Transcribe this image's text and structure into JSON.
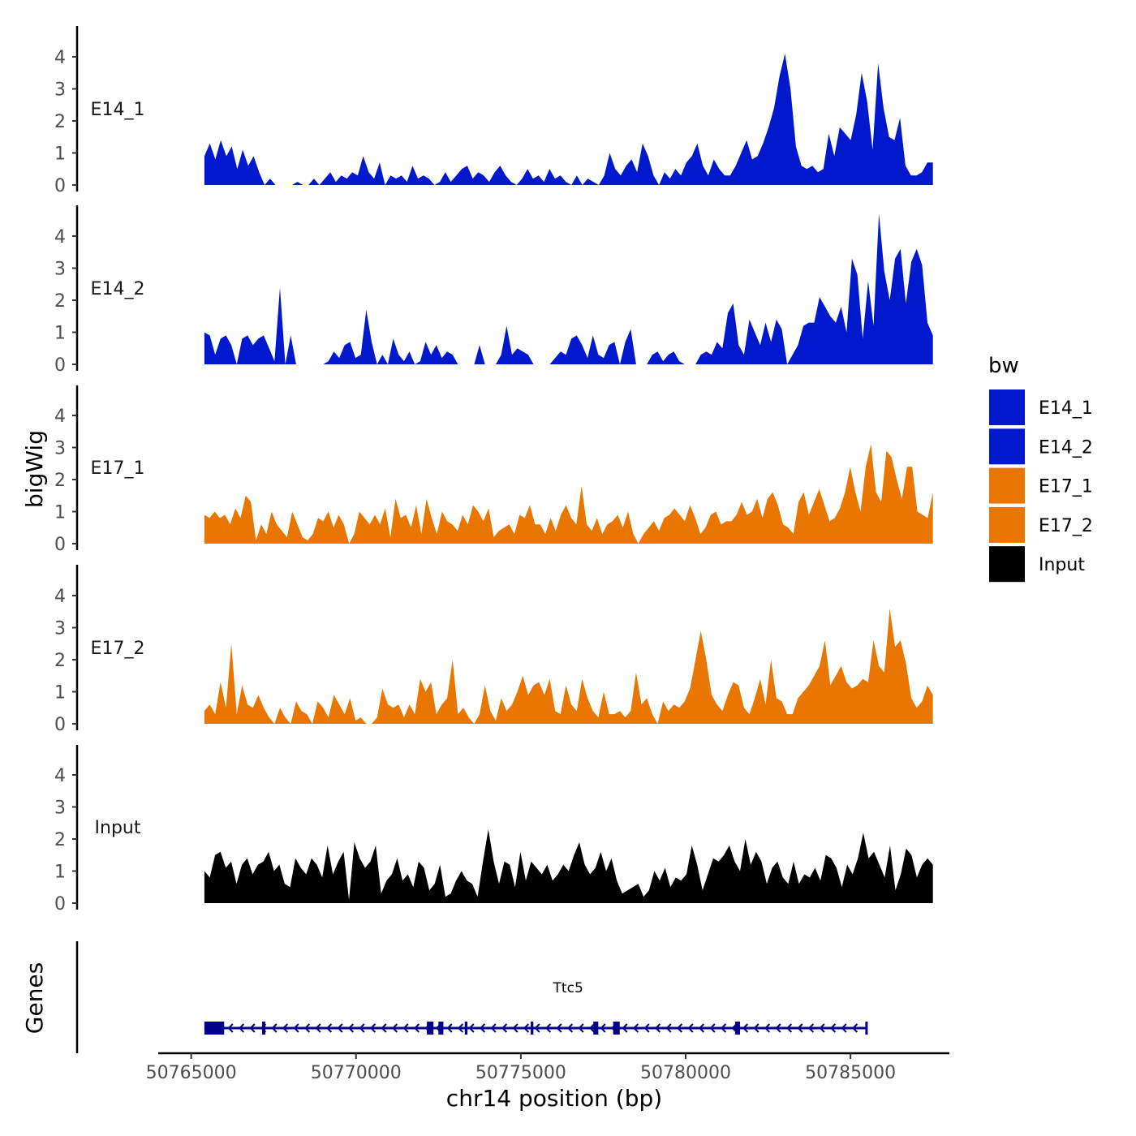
{
  "chart_data": {
    "type": "area",
    "ylabel": "bigWig",
    "xlabel": "chr14 position (bp)",
    "genes_label": "Genes",
    "xlim": [
      50764000,
      50788000
    ],
    "data_xlim": [
      50765400,
      50787500
    ],
    "ylim": [
      0,
      5
    ],
    "yticks": [
      "0",
      "1",
      "2",
      "3",
      "4"
    ],
    "xticks": [
      {
        "value": 50765000,
        "label": "50765000"
      },
      {
        "value": 50770000,
        "label": "50770000"
      },
      {
        "value": 50775000,
        "label": "50775000"
      },
      {
        "value": 50780000,
        "label": "50780000"
      },
      {
        "value": 50785000,
        "label": "50785000"
      }
    ],
    "legend": {
      "title": "bw",
      "entries": [
        {
          "label": "E14_1",
          "color": "#0019CC"
        },
        {
          "label": "E14_2",
          "color": "#0019CC"
        },
        {
          "label": "E17_1",
          "color": "#E87600"
        },
        {
          "label": "E17_2",
          "color": "#E87600"
        },
        {
          "label": "Input",
          "color": "#000000"
        }
      ]
    },
    "series": [
      {
        "name": "E14_1",
        "color": "#0019CC",
        "values": [
          0.9,
          1.3,
          0.8,
          1.4,
          0.9,
          1.2,
          0.5,
          1.1,
          0.6,
          0.9,
          0.4,
          0.0,
          0.2,
          0.0,
          0.0,
          0.0,
          0.0,
          0.1,
          0.0,
          0.0,
          0.2,
          0.0,
          0.2,
          0.4,
          0.1,
          0.3,
          0.2,
          0.4,
          0.3,
          0.9,
          0.4,
          0.2,
          0.7,
          0.0,
          0.3,
          0.2,
          0.3,
          0.1,
          0.6,
          0.2,
          0.3,
          0.2,
          0.0,
          0.1,
          0.4,
          0.1,
          0.3,
          0.5,
          0.6,
          0.2,
          0.4,
          0.3,
          0.1,
          0.4,
          0.6,
          0.3,
          0.1,
          0.0,
          0.2,
          0.5,
          0.2,
          0.3,
          0.1,
          0.5,
          0.2,
          0.3,
          0.1,
          0.0,
          0.3,
          0.0,
          0.2,
          0.1,
          0.0,
          0.3,
          1.0,
          0.5,
          0.3,
          0.6,
          0.8,
          0.4,
          1.3,
          0.9,
          0.3,
          0.0,
          0.4,
          0.2,
          0.5,
          0.3,
          0.7,
          0.9,
          1.3,
          0.6,
          0.3,
          0.8,
          0.5,
          0.3,
          0.3,
          0.6,
          1.0,
          1.4,
          0.8,
          0.9,
          1.3,
          1.8,
          2.4,
          3.4,
          4.1,
          3.0,
          1.2,
          0.6,
          0.5,
          0.6,
          0.4,
          0.5,
          1.6,
          0.9,
          1.8,
          1.6,
          1.4,
          2.2,
          3.5,
          2.6,
          1.1,
          3.8,
          2.4,
          1.5,
          1.4,
          2.1,
          0.6,
          0.3,
          0.3,
          0.4,
          0.7,
          0.7
        ]
      },
      {
        "name": "E14_2",
        "color": "#0019CC",
        "values": [
          1.0,
          0.9,
          0.3,
          0.8,
          0.9,
          0.6,
          0.0,
          0.8,
          0.9,
          0.6,
          0.8,
          0.9,
          0.5,
          0.1,
          2.4,
          0.0,
          0.9,
          0.0,
          0.0,
          0.0,
          0.0,
          0.0,
          0.0,
          0.1,
          0.4,
          0.2,
          0.6,
          0.7,
          0.2,
          0.3,
          1.7,
          0.7,
          0.0,
          0.3,
          0.0,
          0.8,
          0.3,
          0.1,
          0.4,
          0.0,
          0.1,
          0.7,
          0.3,
          0.6,
          0.2,
          0.4,
          0.3,
          0.0,
          0.0,
          0.0,
          0.0,
          0.6,
          0.0,
          0.0,
          0.0,
          0.3,
          1.2,
          0.3,
          0.5,
          0.4,
          0.3,
          0.0,
          0.0,
          0.0,
          0.0,
          0.2,
          0.4,
          0.3,
          0.8,
          0.9,
          0.6,
          0.2,
          0.9,
          0.3,
          0.2,
          0.6,
          0.7,
          0.0,
          0.7,
          1.1,
          0.0,
          0.0,
          0.0,
          0.3,
          0.4,
          0.1,
          0.3,
          0.4,
          0.1,
          0.0,
          0.0,
          0.0,
          0.3,
          0.4,
          0.3,
          0.7,
          0.5,
          1.6,
          1.9,
          0.6,
          0.3,
          1.4,
          1.0,
          0.6,
          1.3,
          0.7,
          1.4,
          1.1,
          0.0,
          0.3,
          0.6,
          1.2,
          1.3,
          1.3,
          2.1,
          1.8,
          1.5,
          1.3,
          1.8,
          1.0,
          3.3,
          2.8,
          0.8,
          2.6,
          1.2,
          4.7,
          2.9,
          2.0,
          3.3,
          3.6,
          1.9,
          3.2,
          3.6,
          3.1,
          1.3,
          0.9
        ]
      },
      {
        "name": "E17_1",
        "color": "#E87600",
        "values": [
          0.9,
          0.8,
          1.0,
          0.8,
          0.9,
          0.6,
          1.1,
          0.8,
          1.5,
          1.3,
          0.1,
          0.6,
          0.3,
          1.0,
          0.6,
          0.4,
          0.2,
          1.0,
          0.6,
          0.2,
          0.1,
          0.3,
          0.8,
          0.7,
          1.0,
          0.5,
          0.9,
          0.6,
          0.0,
          0.3,
          1.0,
          0.8,
          0.6,
          0.9,
          0.6,
          1.1,
          0.2,
          1.4,
          0.8,
          0.9,
          0.5,
          1.2,
          0.3,
          1.4,
          0.8,
          0.3,
          1.0,
          0.7,
          0.6,
          0.4,
          0.9,
          0.6,
          1.2,
          1.0,
          0.7,
          1.1,
          0.2,
          0.4,
          0.5,
          0.6,
          0.3,
          0.9,
          0.8,
          1.2,
          0.6,
          0.6,
          0.3,
          0.8,
          0.4,
          0.9,
          1.2,
          0.8,
          0.6,
          1.8,
          0.6,
          0.4,
          0.8,
          0.3,
          0.6,
          0.7,
          0.9,
          0.5,
          1.0,
          0.3,
          0.0,
          0.3,
          0.5,
          0.7,
          0.4,
          0.8,
          0.9,
          1.1,
          0.9,
          0.7,
          1.2,
          0.8,
          0.3,
          0.5,
          0.9,
          1.0,
          0.6,
          0.7,
          0.7,
          0.9,
          1.3,
          0.9,
          1.0,
          1.4,
          0.8,
          1.4,
          1.6,
          1.2,
          0.6,
          0.5,
          0.3,
          1.3,
          1.6,
          0.9,
          1.3,
          1.7,
          1.2,
          0.7,
          0.8,
          1.1,
          1.6,
          2.4,
          1.6,
          1.0,
          2.4,
          3.1,
          1.6,
          1.3,
          2.9,
          2.7,
          2.0,
          1.4,
          2.4,
          2.4,
          1.0,
          0.9,
          0.8,
          1.6
        ]
      },
      {
        "name": "E17_2",
        "color": "#E87600",
        "values": [
          0.4,
          0.6,
          0.3,
          1.3,
          0.5,
          2.5,
          0.3,
          1.2,
          0.6,
          0.5,
          0.9,
          0.5,
          0.2,
          0.0,
          0.5,
          0.2,
          0.0,
          0.7,
          0.4,
          0.3,
          0.0,
          0.7,
          0.5,
          0.2,
          0.9,
          0.6,
          0.3,
          0.8,
          0.1,
          0.2,
          0.0,
          0.0,
          0.2,
          1.1,
          0.6,
          0.5,
          0.6,
          0.2,
          0.6,
          0.3,
          1.4,
          1.0,
          1.3,
          0.3,
          0.6,
          0.8,
          2.0,
          0.3,
          0.5,
          0.2,
          0.0,
          0.3,
          1.2,
          0.4,
          0.1,
          0.8,
          0.4,
          0.6,
          1.0,
          1.5,
          0.9,
          1.2,
          1.3,
          0.9,
          1.4,
          0.4,
          0.3,
          1.2,
          0.6,
          0.4,
          1.4,
          0.8,
          0.4,
          0.2,
          1.0,
          0.3,
          0.3,
          0.4,
          0.2,
          0.4,
          1.6,
          0.6,
          0.8,
          0.3,
          0.0,
          0.7,
          0.4,
          0.6,
          0.5,
          0.7,
          1.1,
          2.0,
          2.9,
          2.0,
          0.9,
          0.6,
          0.4,
          0.9,
          1.3,
          1.2,
          0.5,
          0.3,
          0.8,
          1.4,
          0.6,
          2.0,
          0.8,
          0.7,
          0.3,
          0.3,
          0.8,
          1.0,
          1.2,
          1.5,
          1.8,
          2.6,
          1.2,
          1.5,
          1.8,
          1.3,
          1.1,
          1.2,
          1.4,
          1.3,
          2.6,
          1.8,
          1.6,
          3.6,
          2.4,
          2.6,
          1.9,
          0.8,
          0.5,
          0.7,
          1.2,
          0.9
        ]
      },
      {
        "name": "Input",
        "color": "#000000",
        "values": [
          1.0,
          0.8,
          1.5,
          1.6,
          1.1,
          1.3,
          0.6,
          1.2,
          1.4,
          0.9,
          1.2,
          1.3,
          1.6,
          1.0,
          1.2,
          0.6,
          0.5,
          1.4,
          1.1,
          0.9,
          1.4,
          1.2,
          0.8,
          1.8,
          0.9,
          1.3,
          1.6,
          0.1,
          1.9,
          1.4,
          1.1,
          1.3,
          1.8,
          0.3,
          0.7,
          0.9,
          1.4,
          0.7,
          0.9,
          0.5,
          1.3,
          1.1,
          0.4,
          0.6,
          1.2,
          0.2,
          0.3,
          0.7,
          1.0,
          0.7,
          0.6,
          0.2,
          1.3,
          2.3,
          1.3,
          0.6,
          1.3,
          1.2,
          0.5,
          1.6,
          0.7,
          1.3,
          1.1,
          0.9,
          1.2,
          0.7,
          0.9,
          1.2,
          1.0,
          1.5,
          1.9,
          1.2,
          0.9,
          1.1,
          1.6,
          1.0,
          1.4,
          0.7,
          0.3,
          0.4,
          0.5,
          0.6,
          0.2,
          0.4,
          1.0,
          0.7,
          1.1,
          0.5,
          0.8,
          0.7,
          0.9,
          1.8,
          1.2,
          0.4,
          0.9,
          1.4,
          1.3,
          1.5,
          1.8,
          1.3,
          1.0,
          2.0,
          1.2,
          1.6,
          1.3,
          0.6,
          1.1,
          1.3,
          0.8,
          0.6,
          1.3,
          0.6,
          0.9,
          0.8,
          1.1,
          0.7,
          1.5,
          1.4,
          1.1,
          0.5,
          1.2,
          0.9,
          1.4,
          2.2,
          1.4,
          1.6,
          1.2,
          0.8,
          1.8,
          0.4,
          0.9,
          1.7,
          1.5,
          0.8,
          1.2,
          1.4,
          1.2
        ]
      }
    ],
    "gene": {
      "name": "Ttc5",
      "start": 50765400,
      "end": 50785500,
      "strand": "-",
      "color": "#00008B",
      "exons": [
        [
          50765400,
          50766000
        ],
        [
          50767150,
          50767250
        ],
        [
          50772150,
          50772350
        ],
        [
          50772500,
          50772650
        ],
        [
          50773300,
          50773380
        ],
        [
          50775300,
          50775380
        ],
        [
          50777200,
          50777350
        ],
        [
          50777800,
          50778000
        ],
        [
          50781500,
          50781650
        ],
        [
          50785450,
          50785500
        ]
      ]
    }
  }
}
